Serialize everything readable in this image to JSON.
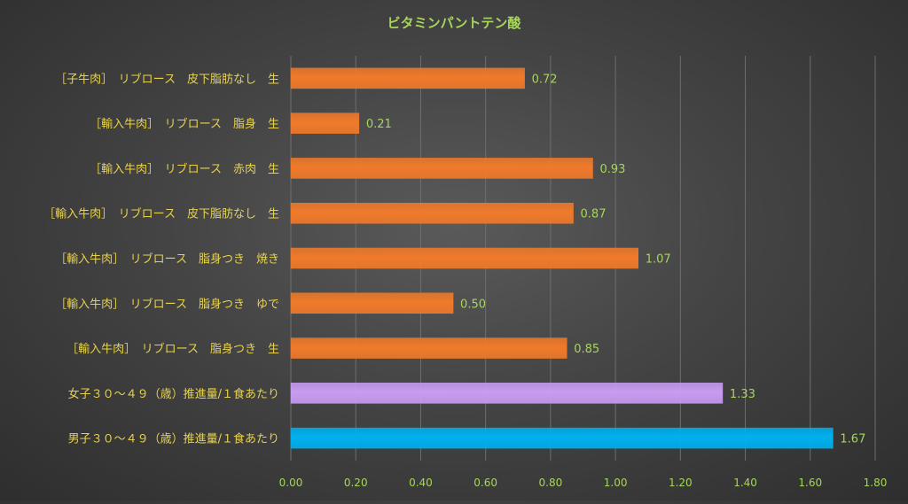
{
  "chart_data": {
    "type": "bar",
    "orientation": "horizontal",
    "title": "ビタミンパントテン酸",
    "categories": [
      "［子牛肉］　リブロース　皮下脂肪なし　生",
      "［輸入牛肉］　リブロース　脂身　生",
      "［輸入牛肉］　リブロース　赤肉　生",
      "［輸入牛肉］　リブロース　皮下脂肪なし　生",
      "［輸入牛肉］　リブロース　脂身つき　焼き",
      "［輸入牛肉］　リブロース　脂身つき　ゆで",
      "［輸入牛肉］　リブロース　脂身つき　生",
      "女子３０～４９（歳）推進量/１食あたり",
      "男子３０～４９（歳）推進量/１食あたり"
    ],
    "values": [
      0.72,
      0.21,
      0.93,
      0.87,
      1.07,
      0.5,
      0.85,
      1.33,
      1.67
    ],
    "value_labels": [
      "0.72",
      "0.21",
      "0.93",
      "0.87",
      "1.07",
      "0.50",
      "0.85",
      "1.33",
      "1.67"
    ],
    "bar_colors": [
      "#f07a2a",
      "#f07a2a",
      "#f07a2a",
      "#f07a2a",
      "#f07a2a",
      "#f07a2a",
      "#f07a2a",
      "#c89cf2",
      "#00b0ef"
    ],
    "xlim": [
      0,
      1.8
    ],
    "xticks": [
      "0.00",
      "0.20",
      "0.40",
      "0.60",
      "0.80",
      "1.00",
      "1.20",
      "1.40",
      "1.60",
      "1.80"
    ],
    "xtick_values": [
      0,
      0.2,
      0.4,
      0.6,
      0.8,
      1.0,
      1.2,
      1.4,
      1.6,
      1.8
    ],
    "grid": true,
    "legend": "none",
    "colors": {
      "title": "#a6d65a",
      "category_label": "#e8d24a",
      "value_label": "#a6d65a",
      "tick_label": "#a6d65a",
      "grid": "#6e6e6e"
    }
  }
}
